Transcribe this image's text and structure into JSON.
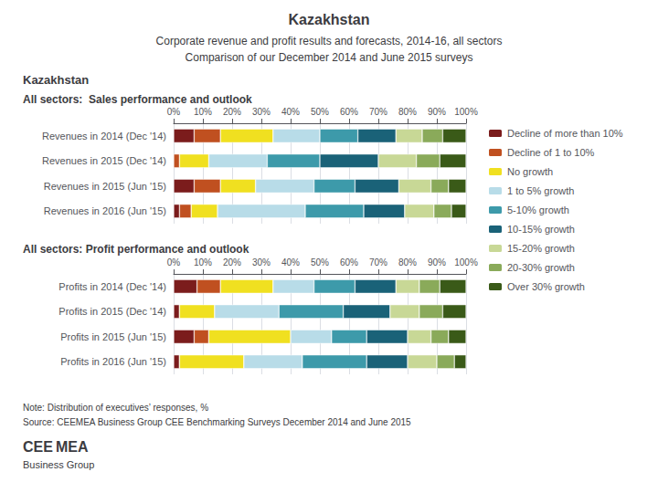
{
  "title": "Kazakhstan",
  "subtitle": [
    "Corporate revenue and profit results and forecasts, 2014-16, all sectors",
    "Comparison of our December 2014 and June 2015 surveys"
  ],
  "annotations": [
    "Kazakhstan",
    "Note: Distribution of executives’ responses, %",
    "Source: CEEMEA Business Group CEE Benchmarking Surveys December 2014 and June 2015",
    "CEE",
    "MEA",
    "Business Group"
  ],
  "legend": "right",
  "chart_data": [
    {
      "type": "bar",
      "title": "All sectors:  Sales performance and outlook",
      "orientation": "horizontal",
      "stacked": true,
      "grid": true,
      "categories": [
        "Revenues in 2014 (Dec '14)",
        "Revenues in 2015 (Dec '14)",
        "Revenues in 2015 (Jun '15)",
        "Revenues in 2016 (Jun '15)"
      ],
      "xlim": [
        0,
        100
      ],
      "xticks": [
        {
          "value": 0,
          "label": "0%"
        },
        {
          "value": 10,
          "label": "10%"
        },
        {
          "value": 20,
          "label": "20%"
        },
        {
          "value": 30,
          "label": "30%"
        },
        {
          "value": 40,
          "label": "40%"
        },
        {
          "value": 50,
          "label": "50%"
        },
        {
          "value": 60,
          "label": "60%"
        },
        {
          "value": 70,
          "label": "70%"
        },
        {
          "value": 80,
          "label": "80%"
        },
        {
          "value": 90,
          "label": "90%"
        },
        {
          "value": 100,
          "label": "100%"
        }
      ],
      "series": [
        {
          "name": "Decline of more than 10%",
          "color": "#7b1c1c",
          "values": [
            7,
            0,
            7,
            2
          ]
        },
        {
          "name": "Decline of 1 to 10%",
          "color": "#c05020",
          "values": [
            9,
            2,
            9,
            4
          ]
        },
        {
          "name": "No growth",
          "color": "#f0e020",
          "values": [
            18,
            10,
            12,
            9
          ]
        },
        {
          "name": "1 to 5% growth",
          "color": "#b8dce8",
          "values": [
            16,
            20,
            20,
            30
          ]
        },
        {
          "name": "5-10% growth",
          "color": "#3d9aaa",
          "values": [
            13,
            18,
            14,
            20
          ]
        },
        {
          "name": "10-15% growth",
          "color": "#1a6278",
          "values": [
            13,
            20,
            15,
            14
          ]
        },
        {
          "name": "15-20% growth",
          "color": "#c8d896",
          "values": [
            9,
            13,
            11,
            10
          ]
        },
        {
          "name": "20-30% growth",
          "color": "#8aaa5a",
          "values": [
            7,
            8,
            6,
            6
          ]
        },
        {
          "name": "Over 30% growth",
          "color": "#3a5a18",
          "values": [
            8,
            9,
            6,
            5
          ]
        }
      ]
    },
    {
      "type": "bar",
      "title": "All sectors: Profit performance and outlook",
      "orientation": "horizontal",
      "stacked": true,
      "grid": true,
      "categories": [
        "Profits in 2014 (Dec '14)",
        "Profits in 2015 (Dec '14)",
        "Profits in 2015 (Jun '15)",
        "Profits in 2016 (Jun '15)"
      ],
      "xlim": [
        0,
        100
      ],
      "xticks": [
        {
          "value": 0,
          "label": "0%"
        },
        {
          "value": 10,
          "label": "10%"
        },
        {
          "value": 20,
          "label": "20%"
        },
        {
          "value": 30,
          "label": "30%"
        },
        {
          "value": 40,
          "label": "40%"
        },
        {
          "value": 50,
          "label": "50%"
        },
        {
          "value": 60,
          "label": "60%"
        },
        {
          "value": 70,
          "label": "70%"
        },
        {
          "value": 80,
          "label": "80%"
        },
        {
          "value": 90,
          "label": "90%"
        },
        {
          "value": 100,
          "label": "100%"
        }
      ],
      "series": [
        {
          "name": "Decline of more than 10%",
          "color": "#7b1c1c",
          "values": [
            8,
            2,
            7,
            2
          ]
        },
        {
          "name": "Decline of 1 to 10%",
          "color": "#c05020",
          "values": [
            8,
            0,
            5,
            0
          ]
        },
        {
          "name": "No growth",
          "color": "#f0e020",
          "values": [
            18,
            12,
            28,
            22
          ]
        },
        {
          "name": "1 to 5% growth",
          "color": "#b8dce8",
          "values": [
            14,
            22,
            14,
            20
          ]
        },
        {
          "name": "5-10% growth",
          "color": "#3d9aaa",
          "values": [
            14,
            22,
            12,
            22
          ]
        },
        {
          "name": "10-15% growth",
          "color": "#1a6278",
          "values": [
            14,
            16,
            14,
            14
          ]
        },
        {
          "name": "15-20% growth",
          "color": "#c8d896",
          "values": [
            8,
            10,
            8,
            10
          ]
        },
        {
          "name": "20-30% growth",
          "color": "#8aaa5a",
          "values": [
            7,
            8,
            6,
            6
          ]
        },
        {
          "name": "Over 30% growth",
          "color": "#3a5a18",
          "values": [
            9,
            8,
            6,
            4
          ]
        }
      ]
    }
  ]
}
